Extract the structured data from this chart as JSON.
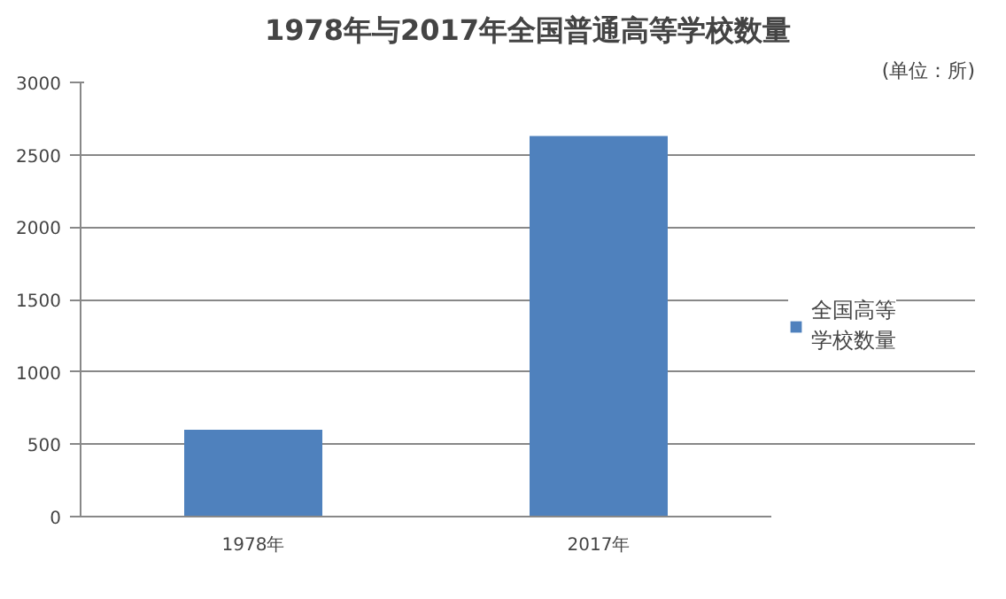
{
  "chart_data": {
    "type": "bar",
    "title": "1978年与2017年全国普通高等学校数量",
    "subtitle": "(单位：所)",
    "categories": [
      "1978年",
      "2017年"
    ],
    "series": [
      {
        "name": "全国高等学校数量",
        "color": "#4f81bd",
        "values": [
          600,
          2630
        ]
      }
    ],
    "ylim": [
      0,
      3000
    ],
    "yticks": [
      0,
      500,
      1000,
      1500,
      2000,
      2500,
      3000
    ],
    "grid": "y",
    "legend": "right"
  }
}
